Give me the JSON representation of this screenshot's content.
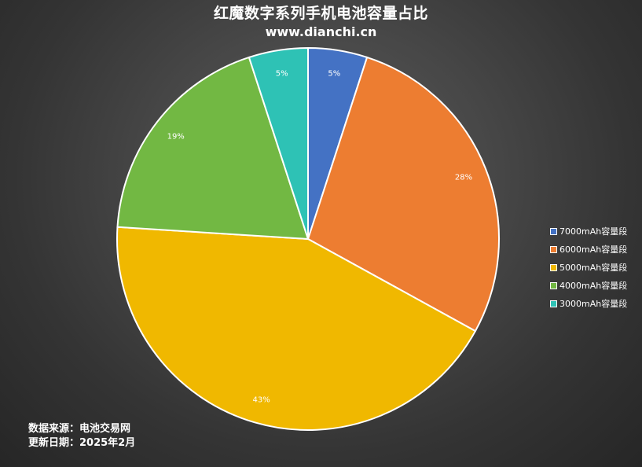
{
  "chart": {
    "title": "红魔数字系列手机电池容量占比",
    "subtitle": "www.dianchi.cn",
    "source_line1": "数据来源：电池交易网",
    "source_line2": "更新日期：2025年2月"
  },
  "chart_data": {
    "type": "pie",
    "title": "红魔数字系列手机电池容量占比",
    "subtitle": "www.dianchi.cn",
    "categories": [
      "7000mAh容量段",
      "6000mAh容量段",
      "5000mAh容量段",
      "4000mAh容量段",
      "3000mAh容量段"
    ],
    "values": [
      5,
      28,
      43,
      19,
      5
    ],
    "labels": [
      "5%",
      "28%",
      "43%",
      "19%",
      "5%"
    ],
    "colors": [
      "#4472c4",
      "#ed7d31",
      "#f0b800",
      "#72b843",
      "#2ec2b5"
    ],
    "legend_position": "right"
  }
}
